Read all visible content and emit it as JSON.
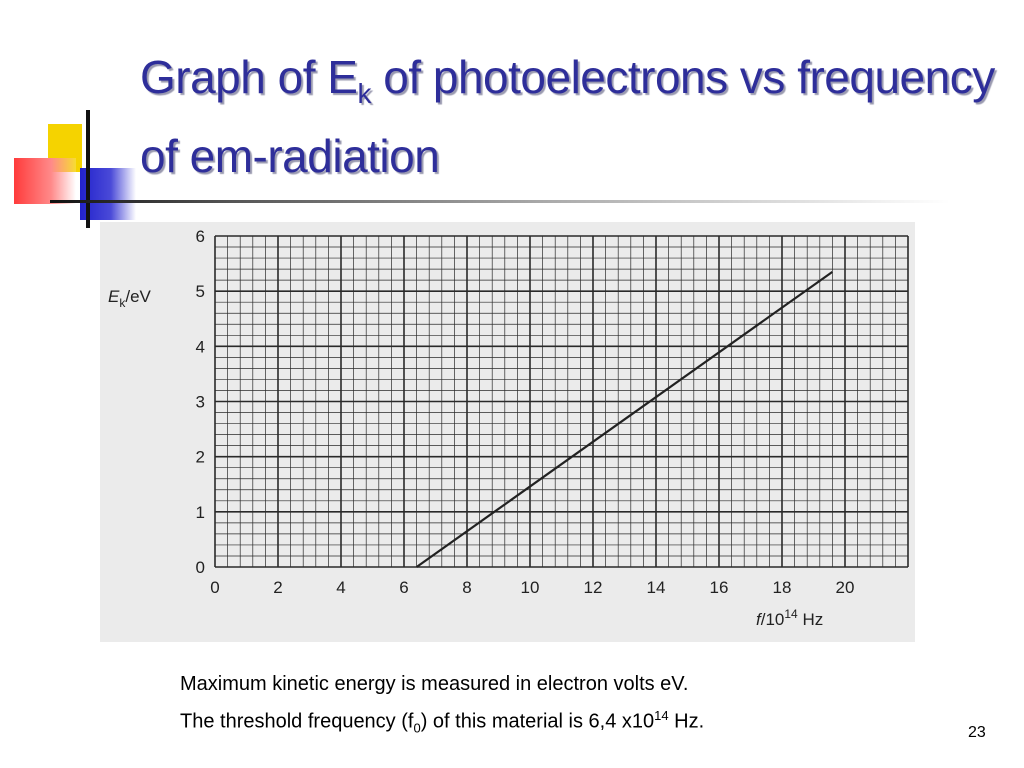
{
  "slide": {
    "title_part1": "Graph of E",
    "title_sub": "k",
    "title_part2": " of photoelectrons vs frequency of em-radiation",
    "caption_line1": "Maximum kinetic energy is measured in electron volts eV.",
    "caption_line2_part1": "The threshold frequency (f",
    "caption_line2_sub": "0",
    "caption_line2_part2": ") of this material is 6,4 x10",
    "caption_line2_sup": "14",
    "caption_line2_part3": "  Hz.",
    "slide_number": "23"
  },
  "chart_data": {
    "type": "line",
    "ylabel_main": "E",
    "ylabel_sub": "k",
    "ylabel_unit": "/eV",
    "xlabel_main": "f",
    "xlabel_unit": "/10",
    "xlabel_sup": "14",
    "xlabel_tail": " Hz",
    "x_ticks": [
      "0",
      "2",
      "4",
      "6",
      "8",
      "10",
      "12",
      "14",
      "16",
      "18",
      "20"
    ],
    "y_ticks": [
      "0",
      "1",
      "2",
      "3",
      "4",
      "5",
      "6"
    ],
    "xlim": [
      0,
      22
    ],
    "ylim": [
      0,
      6
    ],
    "grid": true,
    "series": [
      {
        "x": [
          6.4,
          19.6
        ],
        "y": [
          0,
          5.35
        ]
      }
    ],
    "colors": {
      "panel": "#ebebeb",
      "grid": "#2a2a2a",
      "line": "#222222"
    }
  }
}
